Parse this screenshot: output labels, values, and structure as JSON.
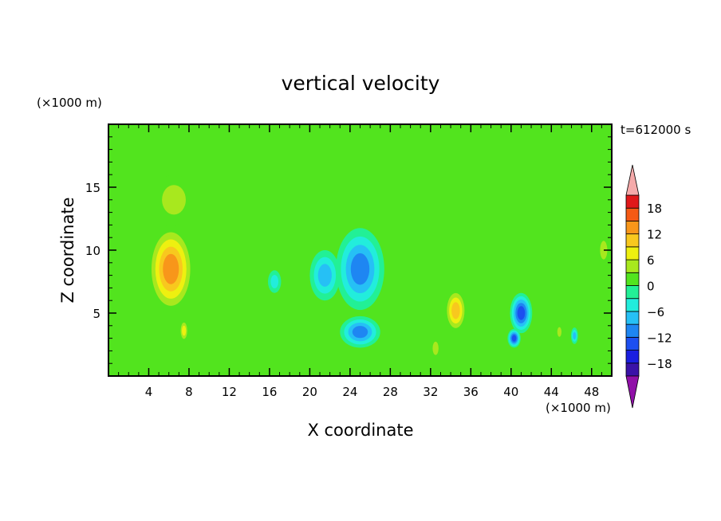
{
  "chart_data": {
    "type": "heatmap",
    "title": "vertical velocity",
    "xlabel": "X coordinate",
    "ylabel": "Z coordinate",
    "x_unit": "(×1000 m)",
    "y_unit": "(×1000 m)",
    "time_label": "t=612000 s",
    "xlim": [
      0,
      50
    ],
    "ylim": [
      0,
      20
    ],
    "x_ticks": [
      4,
      8,
      12,
      16,
      20,
      24,
      28,
      32,
      36,
      40,
      44,
      48
    ],
    "y_ticks": [
      5,
      10,
      15
    ],
    "colorbar": {
      "levels": [
        -21,
        -18,
        -15,
        -12,
        -9,
        -6,
        -3,
        0,
        3,
        6,
        9,
        12,
        15,
        18,
        21
      ],
      "tick_values": [
        18,
        12,
        6,
        0,
        -6,
        -12,
        -18
      ],
      "tick_labels": [
        "18",
        "12",
        "6",
        "0",
        "−6",
        "−12",
        "−18"
      ],
      "colors": [
        "#7b0f9e",
        "#3a12a8",
        "#1a1ee0",
        "#1c4ff0",
        "#1e86f2",
        "#26c0f5",
        "#22eddc",
        "#22f096",
        "#52e41e",
        "#a8e81e",
        "#eef010",
        "#f8c81e",
        "#f8961a",
        "#f55a14",
        "#e0181a",
        "#f5aaa8"
      ],
      "low_extend_color": "#9010a8",
      "high_extend_color": "#f5aaaa"
    },
    "features": [
      {
        "x": 6.2,
        "z": 8.5,
        "w": 4.6,
        "h": 7.0,
        "value": 15
      },
      {
        "x": 7.5,
        "z": 3.6,
        "w": 0.9,
        "h": 1.8,
        "value": 8
      },
      {
        "x": 6.5,
        "z": 14.0,
        "w": 4.0,
        "h": 4.0,
        "value": 6
      },
      {
        "x": 1.5,
        "z": 9.0,
        "w": 1.5,
        "h": 4.0,
        "value": 3
      },
      {
        "x": 49.2,
        "z": 10.0,
        "w": 1.2,
        "h": 2.5,
        "value": 4
      },
      {
        "x": 25.0,
        "z": 8.5,
        "w": 4.8,
        "h": 6.5,
        "value": -12
      },
      {
        "x": 21.5,
        "z": 8.0,
        "w": 3.0,
        "h": 4.0,
        "value": -7
      },
      {
        "x": 25.0,
        "z": 3.5,
        "w": 4.0,
        "h": 2.5,
        "value": -10
      },
      {
        "x": 16.5,
        "z": 7.5,
        "w": 1.3,
        "h": 1.8,
        "value": -6
      },
      {
        "x": 34.5,
        "z": 5.2,
        "w": 2.2,
        "h": 3.5,
        "value": 10
      },
      {
        "x": 32.5,
        "z": 2.2,
        "w": 1.0,
        "h": 1.8,
        "value": 5
      },
      {
        "x": 41.0,
        "z": 5.0,
        "w": 2.2,
        "h": 3.2,
        "value": -14
      },
      {
        "x": 44.8,
        "z": 3.5,
        "w": 0.7,
        "h": 1.3,
        "value": 4
      },
      {
        "x": 46.3,
        "z": 3.2,
        "w": 0.7,
        "h": 1.3,
        "value": -7
      },
      {
        "x": 40.3,
        "z": 3.0,
        "w": 1.3,
        "h": 1.5,
        "value": -15
      }
    ]
  }
}
